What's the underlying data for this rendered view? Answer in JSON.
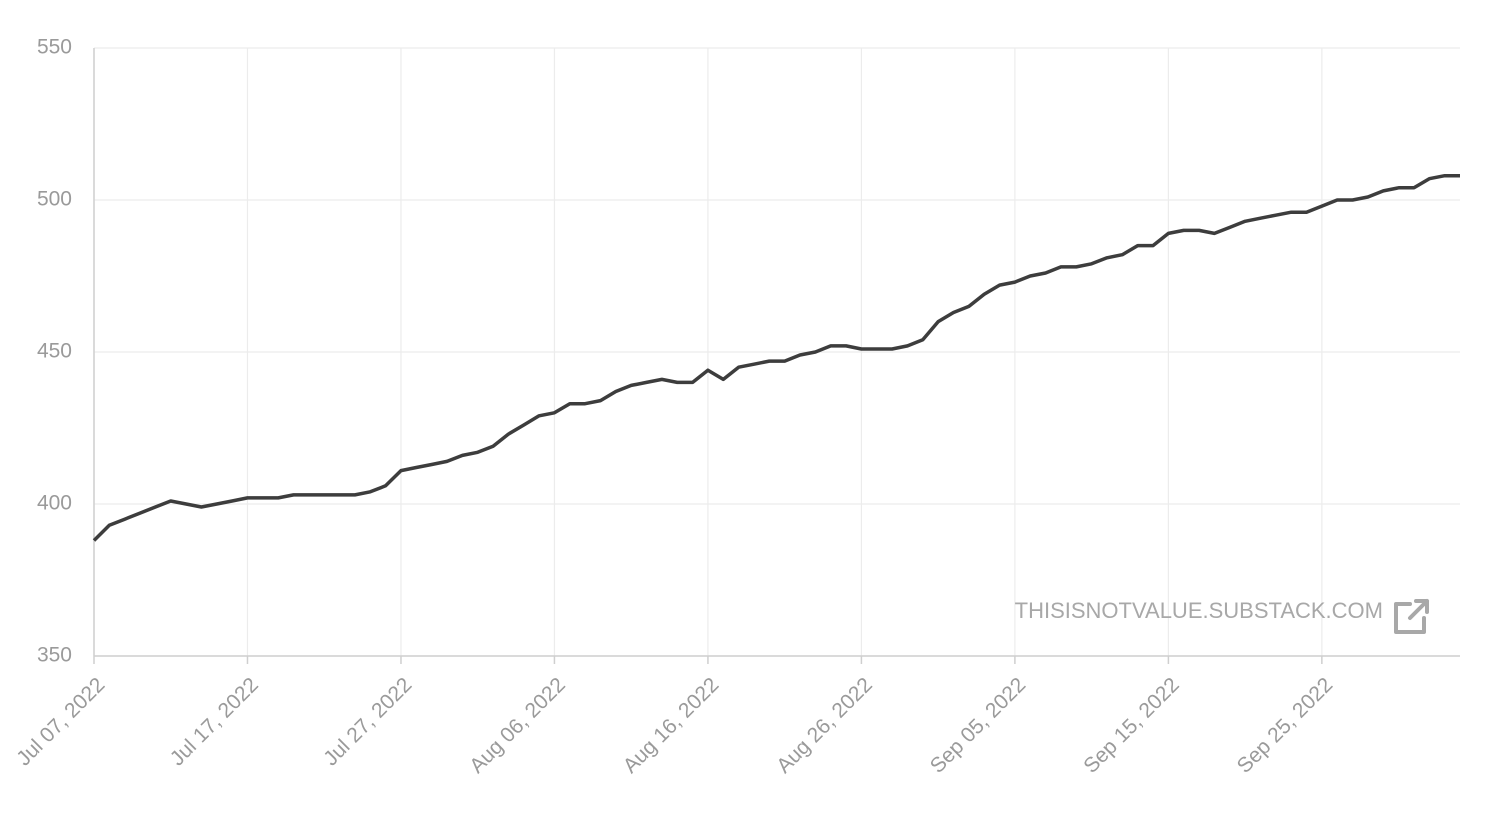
{
  "chart_data": {
    "type": "line",
    "x": [
      "Jul 07, 2022",
      "Jul 08, 2022",
      "Jul 09, 2022",
      "Jul 10, 2022",
      "Jul 11, 2022",
      "Jul 12, 2022",
      "Jul 13, 2022",
      "Jul 14, 2022",
      "Jul 15, 2022",
      "Jul 16, 2022",
      "Jul 17, 2022",
      "Jul 18, 2022",
      "Jul 19, 2022",
      "Jul 20, 2022",
      "Jul 21, 2022",
      "Jul 22, 2022",
      "Jul 23, 2022",
      "Jul 24, 2022",
      "Jul 25, 2022",
      "Jul 26, 2022",
      "Jul 27, 2022",
      "Jul 28, 2022",
      "Jul 29, 2022",
      "Jul 30, 2022",
      "Jul 31, 2022",
      "Aug 01, 2022",
      "Aug 02, 2022",
      "Aug 03, 2022",
      "Aug 04, 2022",
      "Aug 05, 2022",
      "Aug 06, 2022",
      "Aug 07, 2022",
      "Aug 08, 2022",
      "Aug 09, 2022",
      "Aug 10, 2022",
      "Aug 11, 2022",
      "Aug 12, 2022",
      "Aug 13, 2022",
      "Aug 14, 2022",
      "Aug 15, 2022",
      "Aug 16, 2022",
      "Aug 17, 2022",
      "Aug 18, 2022",
      "Aug 19, 2022",
      "Aug 20, 2022",
      "Aug 21, 2022",
      "Aug 22, 2022",
      "Aug 23, 2022",
      "Aug 24, 2022",
      "Aug 25, 2022",
      "Aug 26, 2022",
      "Aug 27, 2022",
      "Aug 28, 2022",
      "Aug 29, 2022",
      "Aug 30, 2022",
      "Aug 31, 2022",
      "Sep 01, 2022",
      "Sep 02, 2022",
      "Sep 03, 2022",
      "Sep 04, 2022",
      "Sep 05, 2022",
      "Sep 06, 2022",
      "Sep 07, 2022",
      "Sep 08, 2022",
      "Sep 09, 2022",
      "Sep 10, 2022",
      "Sep 11, 2022",
      "Sep 12, 2022",
      "Sep 13, 2022",
      "Sep 14, 2022",
      "Sep 15, 2022",
      "Sep 16, 2022",
      "Sep 17, 2022",
      "Sep 18, 2022",
      "Sep 19, 2022",
      "Sep 20, 2022",
      "Sep 21, 2022",
      "Sep 22, 2022",
      "Sep 23, 2022",
      "Sep 24, 2022",
      "Sep 25, 2022",
      "Sep 26, 2022",
      "Sep 27, 2022",
      "Sep 28, 2022",
      "Sep 29, 2022",
      "Sep 30, 2022",
      "Oct 01, 2022",
      "Oct 02, 2022",
      "Oct 03, 2022",
      "Oct 04, 2022"
    ],
    "series": [
      {
        "color": "#3d3d3d",
        "values": [
          388,
          393,
          395,
          397,
          399,
          401,
          400,
          399,
          400,
          401,
          402,
          402,
          402,
          403,
          403,
          403,
          403,
          403,
          404,
          406,
          411,
          412,
          413,
          414,
          416,
          417,
          419,
          423,
          426,
          429,
          430,
          433,
          433,
          434,
          437,
          439,
          440,
          441,
          440,
          440,
          444,
          441,
          445,
          446,
          447,
          447,
          449,
          450,
          452,
          452,
          451,
          451,
          451,
          452,
          454,
          460,
          463,
          465,
          469,
          472,
          473,
          475,
          476,
          478,
          478,
          479,
          481,
          482,
          485,
          485,
          489,
          490,
          490,
          489,
          491,
          493,
          494,
          495,
          496,
          496,
          498,
          500,
          500,
          501,
          503,
          504,
          504,
          507,
          508,
          508
        ]
      }
    ],
    "xlim": [
      "Jul 07, 2022",
      "Oct 04, 2022"
    ],
    "xticks": [
      "Jul 07, 2022",
      "Jul 17, 2022",
      "Jul 27, 2022",
      "Aug 06, 2022",
      "Aug 16, 2022",
      "Aug 26, 2022",
      "Sep 05, 2022",
      "Sep 15, 2022",
      "Sep 25, 2022"
    ],
    "ylim": [
      350,
      550
    ],
    "yticks": [
      350,
      400,
      450,
      500,
      550
    ],
    "grid": true,
    "watermark": "THISISNOTVALUE.SUBSTACK.COM"
  }
}
